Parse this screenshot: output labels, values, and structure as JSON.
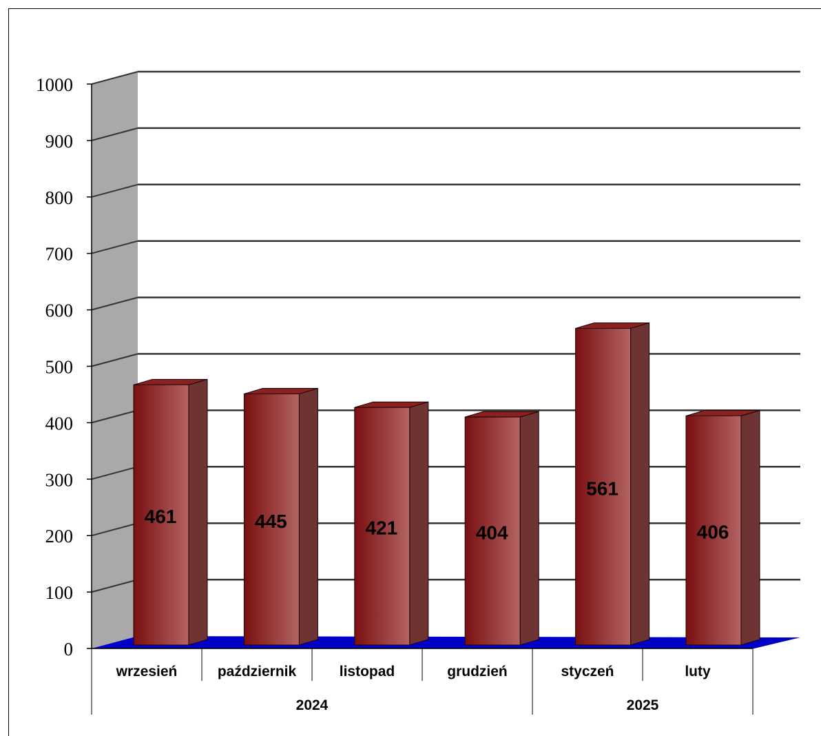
{
  "chart_data": {
    "type": "bar",
    "categories": [
      "wrzesień",
      "październik",
      "listopad",
      "grudzień",
      "styczeń",
      "luty"
    ],
    "groups": [
      {
        "label": "2024",
        "count": 4
      },
      {
        "label": "2025",
        "count": 2
      }
    ],
    "values": [
      461,
      445,
      421,
      404,
      561,
      406
    ],
    "data_labels": [
      "461",
      "445",
      "421",
      "404",
      "561",
      "406"
    ],
    "yticks": [
      "0",
      "100",
      "200",
      "300",
      "400",
      "500",
      "600",
      "700",
      "800",
      "900",
      "1000"
    ],
    "ylim": [
      0,
      1000
    ],
    "grid": true,
    "legend": "none",
    "style": "3d-column"
  },
  "colors": {
    "bar_dark": "#7a0f10",
    "bar_light": "#b46464",
    "bar_side": "#6e3434",
    "bar_top": "#8a2020",
    "floor": "#0000c8",
    "wall": "#a9a9a9",
    "grid": "#333333"
  }
}
